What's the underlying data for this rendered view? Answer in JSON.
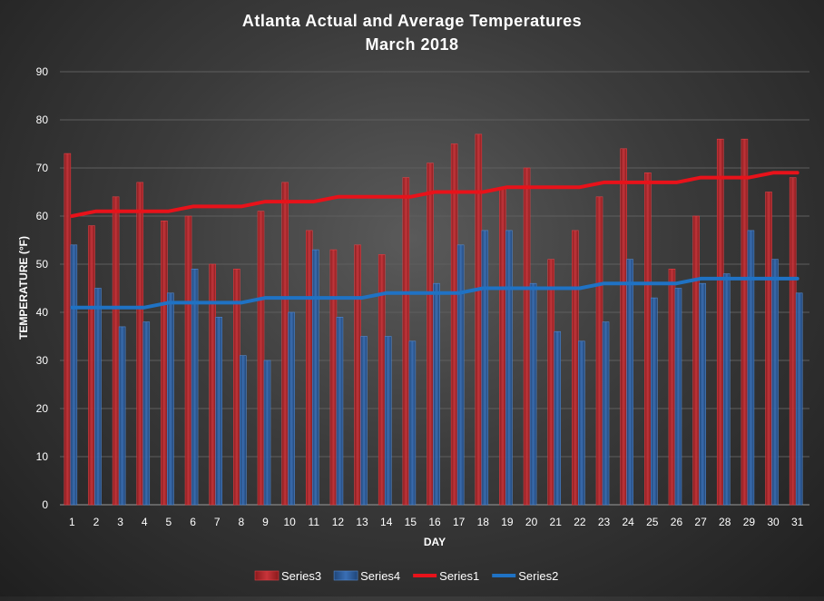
{
  "chart_data": {
    "type": "bar",
    "title": "Atlanta Actual and Average Temperatures",
    "subtitle": "March 2018",
    "xlabel": "DAY",
    "ylabel": "TEMPERATURE (°F)",
    "ylim": [
      0,
      90
    ],
    "yticks": [
      0,
      10,
      20,
      30,
      40,
      50,
      60,
      70,
      80,
      90
    ],
    "grid": true,
    "legend_position": "bottom",
    "categories": [
      "1",
      "2",
      "3",
      "4",
      "5",
      "6",
      "7",
      "8",
      "9",
      "10",
      "11",
      "12",
      "13",
      "14",
      "15",
      "16",
      "17",
      "18",
      "19",
      "20",
      "21",
      "22",
      "23",
      "24",
      "25",
      "26",
      "27",
      "28",
      "29",
      "30",
      "31"
    ],
    "series": [
      {
        "name": "Series3",
        "kind": "bar",
        "color": "#c0272d",
        "values": [
          73,
          58,
          64,
          67,
          59,
          60,
          50,
          49,
          61,
          67,
          57,
          53,
          54,
          52,
          68,
          71,
          75,
          77,
          66,
          70,
          51,
          57,
          64,
          74,
          69,
          49,
          60,
          76,
          76,
          65,
          68
        ]
      },
      {
        "name": "Series4",
        "kind": "bar",
        "color": "#2e5f9e",
        "values": [
          54,
          45,
          37,
          38,
          44,
          49,
          39,
          31,
          30,
          40,
          53,
          39,
          35,
          35,
          34,
          46,
          54,
          57,
          57,
          46,
          36,
          34,
          38,
          51,
          43,
          45,
          46,
          48,
          57,
          51,
          44
        ]
      },
      {
        "name": "Series1",
        "kind": "line",
        "color": "#e8121a",
        "values": [
          60,
          61,
          61,
          61,
          61,
          62,
          62,
          62,
          63,
          63,
          63,
          64,
          64,
          64,
          64,
          65,
          65,
          65,
          66,
          66,
          66,
          66,
          67,
          67,
          67,
          67,
          68,
          68,
          68,
          69,
          69
        ]
      },
      {
        "name": "Series2",
        "kind": "line",
        "color": "#1f72c4",
        "values": [
          41,
          41,
          41,
          41,
          42,
          42,
          42,
          42,
          43,
          43,
          43,
          43,
          43,
          44,
          44,
          44,
          44,
          45,
          45,
          45,
          45,
          45,
          46,
          46,
          46,
          46,
          47,
          47,
          47,
          47,
          47
        ]
      }
    ]
  }
}
